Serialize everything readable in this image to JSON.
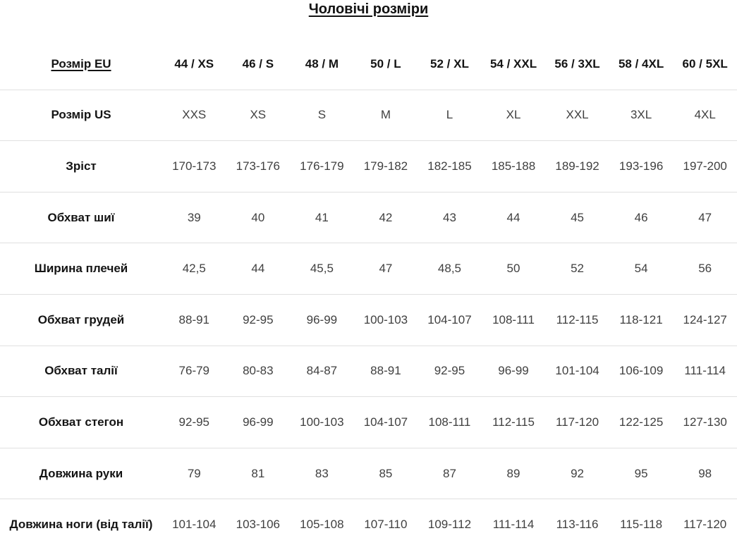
{
  "title": "Чоловічі розміри",
  "colors": {
    "background": "#ffffff",
    "heading_text": "#141414",
    "value_text": "#404040",
    "divider": "#e0e0e0"
  },
  "table": {
    "rows": [
      {
        "label": "Розмір EU",
        "values": [
          "44 / XS",
          "46 / S",
          "48 / M",
          "50 / L",
          "52 / XL",
          "54 / XXL",
          "56 / 3XL",
          "58 / 4XL",
          "60 / 5XL"
        ]
      },
      {
        "label": "Розмір US",
        "values": [
          "XXS",
          "XS",
          "S",
          "M",
          "L",
          "XL",
          "XXL",
          "3XL",
          "4XL"
        ]
      },
      {
        "label": "Зріст",
        "values": [
          "170-173",
          "173-176",
          "176-179",
          "179-182",
          "182-185",
          "185-188",
          "189-192",
          "193-196",
          "197-200"
        ]
      },
      {
        "label": "Обхват шиї",
        "values": [
          "39",
          "40",
          "41",
          "42",
          "43",
          "44",
          "45",
          "46",
          "47"
        ]
      },
      {
        "label": "Ширина плечей",
        "values": [
          "42,5",
          "44",
          "45,5",
          "47",
          "48,5",
          "50",
          "52",
          "54",
          "56"
        ]
      },
      {
        "label": "Обхват грудей",
        "values": [
          "88-91",
          "92-95",
          "96-99",
          "100-103",
          "104-107",
          "108-111",
          "112-115",
          "118-121",
          "124-127"
        ]
      },
      {
        "label": "Обхват талії",
        "values": [
          "76-79",
          "80-83",
          "84-87",
          "88-91",
          "92-95",
          "96-99",
          "101-104",
          "106-109",
          "111-114"
        ]
      },
      {
        "label": "Обхват стегон",
        "values": [
          "92-95",
          "96-99",
          "100-103",
          "104-107",
          "108-111",
          "112-115",
          "117-120",
          "122-125",
          "127-130"
        ]
      },
      {
        "label": "Довжина руки",
        "values": [
          "79",
          "81",
          "83",
          "85",
          "87",
          "89",
          "92",
          "95",
          "98"
        ]
      },
      {
        "label": "Довжина ноги (від талії)",
        "values": [
          "101-104",
          "103-106",
          "105-108",
          "107-110",
          "109-112",
          "111-114",
          "113-116",
          "115-118",
          "117-120"
        ]
      }
    ]
  }
}
